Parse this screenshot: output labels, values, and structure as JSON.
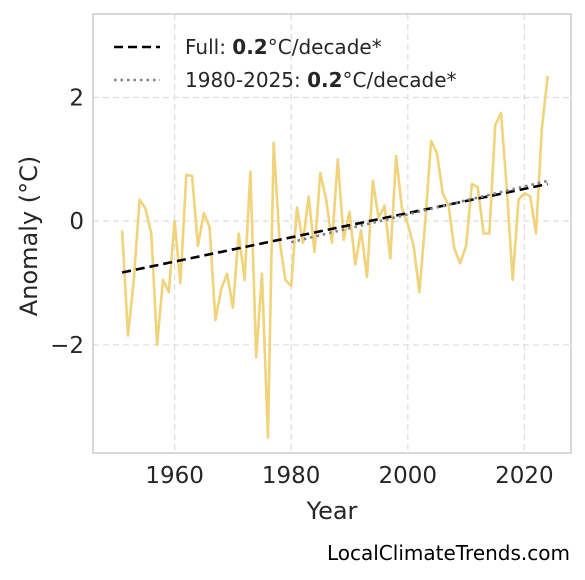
{
  "chart_data": {
    "type": "line",
    "xlabel": "Year",
    "ylabel": "Anomaly (°C)",
    "xlim": [
      1946,
      2028
    ],
    "ylim": [
      -3.75,
      3.35
    ],
    "xticks": [
      1960,
      1980,
      2000,
      2020
    ],
    "yticks": [
      -2,
      0,
      2
    ],
    "ytick_labels": [
      "−2",
      "0",
      "2"
    ],
    "grid": true,
    "legend_position": "top-left",
    "colors": {
      "anomaly": "#f0d37a",
      "trend_full": "#000000",
      "trend_recent": "#808080",
      "grid": "#dddddd",
      "frame": "#cccccc"
    },
    "series": [
      {
        "style": "solid",
        "x": [
          1951,
          1952,
          1953,
          1954,
          1955,
          1956,
          1957,
          1958,
          1959,
          1960,
          1961,
          1962,
          1963,
          1964,
          1965,
          1966,
          1967,
          1968,
          1969,
          1970,
          1971,
          1972,
          1973,
          1974,
          1975,
          1976,
          1977,
          1978,
          1979,
          1980,
          1981,
          1982,
          1983,
          1984,
          1985,
          1986,
          1987,
          1988,
          1989,
          1990,
          1991,
          1992,
          1993,
          1994,
          1995,
          1996,
          1997,
          1998,
          1999,
          2000,
          2001,
          2002,
          2003,
          2004,
          2005,
          2006,
          2007,
          2008,
          2009,
          2010,
          2011,
          2012,
          2013,
          2014,
          2015,
          2016,
          2017,
          2018,
          2019,
          2020,
          2021,
          2022,
          2023,
          2024
        ],
        "y": [
          -0.15,
          -1.85,
          -0.95,
          0.35,
          0.2,
          -0.2,
          -2.0,
          -0.95,
          -1.15,
          0.0,
          -1.0,
          0.75,
          0.73,
          -0.4,
          0.13,
          -0.1,
          -1.6,
          -1.1,
          -0.85,
          -1.4,
          -0.2,
          -0.95,
          0.8,
          -2.2,
          -0.85,
          -3.5,
          1.27,
          -0.3,
          -0.95,
          -1.05,
          0.22,
          -0.35,
          0.4,
          -0.5,
          0.78,
          0.35,
          -0.35,
          1.0,
          -0.3,
          0.15,
          -0.7,
          -0.15,
          -0.9,
          0.65,
          0.05,
          0.25,
          -0.6,
          1.05,
          0.2,
          -0.05,
          -0.4,
          -1.15,
          0.0,
          1.3,
          1.1,
          0.45,
          0.25,
          -0.45,
          -0.68,
          -0.4,
          0.6,
          0.55,
          -0.2,
          -0.2,
          1.55,
          1.75,
          0.5,
          -0.95,
          0.35,
          0.45,
          0.4,
          -0.2,
          1.5,
          2.35
        ]
      },
      {
        "name": "Full: 0.2°C/decade*",
        "style": "dashed",
        "x": [
          1951,
          2024
        ],
        "y": [
          -0.83,
          0.6
        ]
      },
      {
        "name": "1980-2025: 0.2°C/decade*",
        "style": "dotted",
        "x": [
          1980,
          2024
        ],
        "y": [
          -0.34,
          0.65
        ]
      }
    ],
    "legend": [
      {
        "prefix": "Full: ",
        "bold": "0.2",
        "suffix": "°C/decade*"
      },
      {
        "prefix": "1980-2025: ",
        "bold": "0.2",
        "suffix": "°C/decade*"
      }
    ]
  },
  "footer": "LocalClimateTrends.com"
}
